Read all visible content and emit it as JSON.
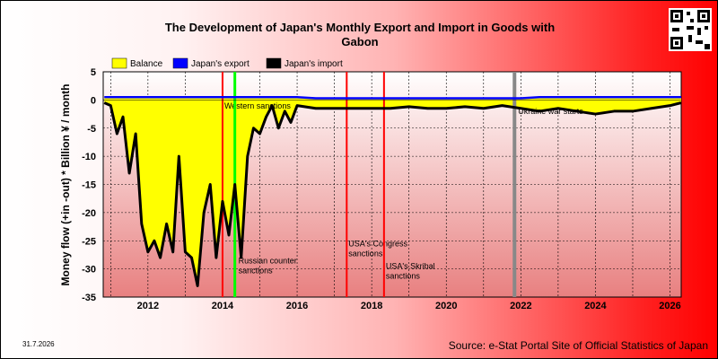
{
  "chart_data": {
    "type": "area",
    "title_line1": "The Development of Japan's Monthly Export and Import in Goods with",
    "title_line2": "Gabon",
    "ylabel": "Money flow (+in -out) * Billion ¥ / month",
    "ylim": [
      -35,
      5
    ],
    "y_ticks": [
      "5",
      "0",
      "-5",
      "-10",
      "-15",
      "-20",
      "-25",
      "-30",
      "-35"
    ],
    "y_tick_values": [
      5,
      0,
      -5,
      -10,
      -15,
      -20,
      -25,
      -30,
      -35
    ],
    "xlim": [
      2010.8,
      2026.3
    ],
    "x_ticks": [
      "2012",
      "2014",
      "2016",
      "2018",
      "2020",
      "2022",
      "2024",
      "2026"
    ],
    "x_tick_values": [
      2012,
      2014,
      2016,
      2018,
      2020,
      2022,
      2024,
      2026
    ],
    "grid": true,
    "legend_position": "top-left",
    "series": [
      {
        "name": "Balance",
        "color": "#ffff00"
      },
      {
        "name": "Japan's export",
        "color": "#0000ff"
      },
      {
        "name": "Japan's import",
        "color": "#000000"
      }
    ],
    "x": [
      2010.83,
      2011.0,
      2011.17,
      2011.33,
      2011.5,
      2011.67,
      2011.83,
      2012.0,
      2012.17,
      2012.33,
      2012.5,
      2012.67,
      2012.83,
      2013.0,
      2013.17,
      2013.33,
      2013.5,
      2013.67,
      2013.83,
      2014.0,
      2014.17,
      2014.33,
      2014.5,
      2014.67,
      2014.83,
      2015.0,
      2015.17,
      2015.33,
      2015.5,
      2015.67,
      2015.83,
      2016.0,
      2016.5,
      2017.0,
      2017.5,
      2018.0,
      2018.5,
      2019.0,
      2019.5,
      2020.0,
      2020.5,
      2021.0,
      2021.5,
      2022.0,
      2022.5,
      2023.0,
      2023.5,
      2024.0,
      2024.5,
      2025.0,
      2025.5,
      2026.0,
      2026.3
    ],
    "import": [
      -0.5,
      -1,
      -6,
      -3,
      -13,
      -6,
      -22,
      -27,
      -25,
      -28,
      -22,
      -27,
      -10,
      -27,
      -28,
      -33,
      -20,
      -15,
      -28,
      -18,
      -24,
      -15,
      -28,
      -10,
      -5,
      -6,
      -3,
      -1,
      -5,
      -2,
      -4,
      -1,
      -1.5,
      -1.5,
      -1.5,
      -1.5,
      -1.5,
      -1.2,
      -1.5,
      -1.5,
      -1.2,
      -1.5,
      -1,
      -1.5,
      -2,
      -1.5,
      -2,
      -2.5,
      -2,
      -2,
      -1.5,
      -1,
      -0.5
    ],
    "export": [
      0.5,
      0.5,
      0.5,
      0.5,
      0.5,
      0.5,
      0.5,
      0.5,
      0.5,
      0.5,
      0.5,
      0.5,
      0.5,
      0.5,
      0.5,
      0.5,
      0.5,
      0.5,
      0.5,
      0.5,
      0.5,
      0.5,
      0.5,
      0.5,
      0.5,
      0.5,
      0.5,
      0.5,
      0.5,
      0.5,
      0.5,
      0.5,
      0.3,
      0.3,
      0.3,
      0.3,
      0.3,
      0.3,
      0.3,
      0.3,
      0.3,
      0.3,
      0.3,
      0.3,
      0.5,
      0.5,
      0.5,
      0.5,
      0.5,
      0.5,
      0.5,
      0.5,
      0.5
    ],
    "vlines": [
      {
        "x": 2014.0,
        "color": "#ff0000",
        "label": "Western sanctions"
      },
      {
        "x": 2014.33,
        "color": "#00ff00",
        "label": "Russian counter sanctions"
      },
      {
        "x": 2017.33,
        "color": "#ff0000",
        "label": "USA's Congress sanctions"
      },
      {
        "x": 2018.33,
        "color": "#ff0000",
        "label": "USA's Skribal sanctions"
      },
      {
        "x": 2021.83,
        "color": "#888888",
        "label": "Ukraine war starts"
      }
    ]
  },
  "footer": {
    "date": "31.7.2026",
    "source": "Source: e-Stat Portal Site of Official Statistics of Japan"
  }
}
